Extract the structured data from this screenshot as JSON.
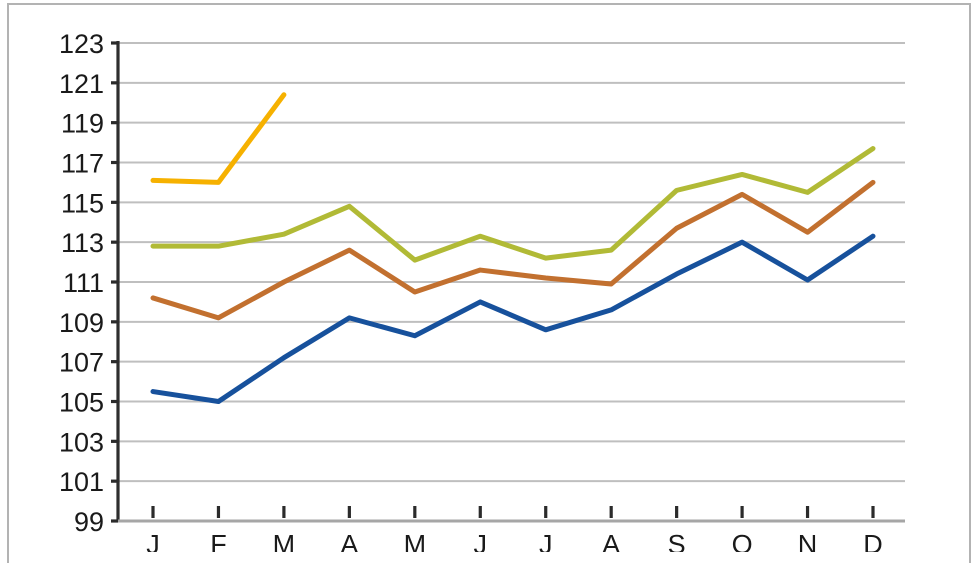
{
  "page": {
    "title": "",
    "background_color": "#ffffff",
    "frame_border_color": "#b3b3b3"
  },
  "chart_data": {
    "type": "line",
    "title": "",
    "xlabel": "",
    "ylabel": "",
    "categories": [
      "J",
      "F",
      "M",
      "A",
      "M",
      "J",
      "J",
      "A",
      "S",
      "O",
      "N",
      "D"
    ],
    "series": [
      {
        "name": "series-blue",
        "color": "#17519c",
        "values": [
          105.5,
          105.0,
          107.2,
          109.2,
          108.3,
          110.0,
          108.6,
          109.6,
          111.4,
          113.0,
          111.1,
          113.3
        ]
      },
      {
        "name": "series-orange",
        "color": "#c2702f",
        "values": [
          110.2,
          109.2,
          111.0,
          112.6,
          110.5,
          111.6,
          111.2,
          110.9,
          113.7,
          115.4,
          113.5,
          116.0
        ]
      },
      {
        "name": "series-olive",
        "color": "#b1ba36",
        "values": [
          112.8,
          112.8,
          113.4,
          114.8,
          112.1,
          113.3,
          112.2,
          112.6,
          115.6,
          116.4,
          115.5,
          117.7
        ]
      },
      {
        "name": "series-yellow",
        "color": "#f6b100",
        "values": [
          116.1,
          116.0,
          120.4,
          null,
          null,
          null,
          null,
          null,
          null,
          null,
          null,
          null
        ]
      }
    ],
    "ylim": [
      99,
      123
    ],
    "ytick_step": 2,
    "yticks": [
      99,
      101,
      103,
      105,
      107,
      109,
      111,
      113,
      115,
      117,
      119,
      121,
      123
    ],
    "grid": true,
    "legend_position": "none",
    "styles": {
      "gridline_color": "#bfbfbf",
      "y_axis_color": "#2e2e2e",
      "x_axis_color": "#a6a6a6",
      "tick_color": "#2b2b2b",
      "label_color": "#1a1a1a",
      "line_width": 5
    }
  }
}
